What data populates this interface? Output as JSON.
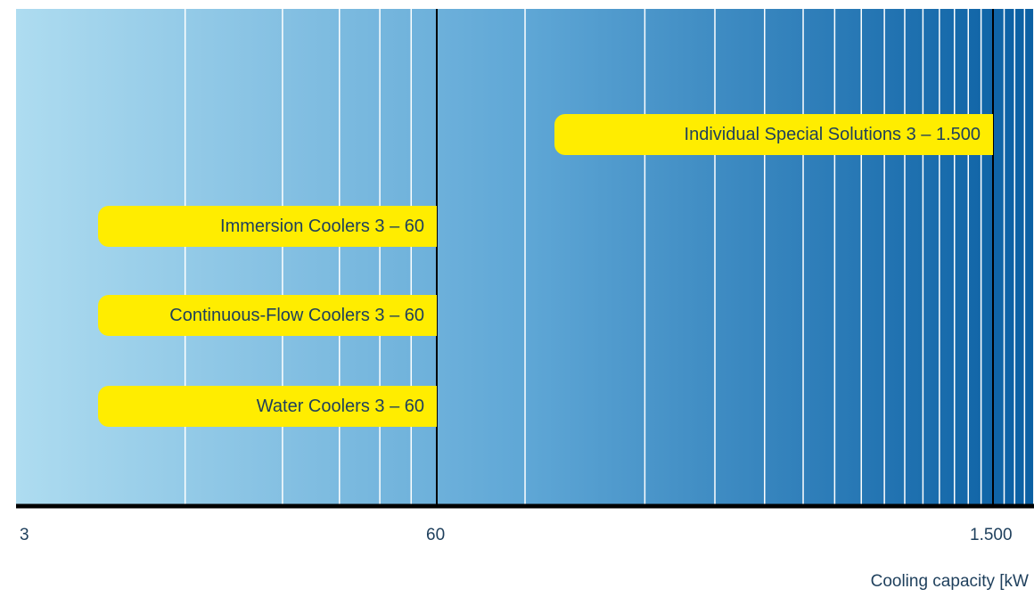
{
  "chart_data": {
    "type": "bar",
    "orientation": "horizontal",
    "x_scale": "log",
    "xlim": [
      3,
      1500
    ],
    "xticks": [
      {
        "value": 3,
        "label": "3"
      },
      {
        "value": 60,
        "label": "60"
      },
      {
        "value": 1500,
        "label": "1.500"
      }
    ],
    "xlabel": "Cooling capacity [kW",
    "bars": [
      {
        "label": "Individual Special Solutions  3 – 1.500",
        "from": 3,
        "to": 1500
      },
      {
        "label": "Immersion Coolers 3 – 60",
        "from": 3,
        "to": 60
      },
      {
        "label": "Continuous-Flow Coolers  3 – 60",
        "from": 3,
        "to": 60
      },
      {
        "label": "Water Coolers  3 – 60",
        "from": 3,
        "to": 60
      }
    ],
    "colors": {
      "bar": "#ffed00",
      "gradient_start": "#aedcf0",
      "gradient_end": "#0a5fa3",
      "axis": "#000000",
      "text": "#1e3f5c"
    }
  }
}
